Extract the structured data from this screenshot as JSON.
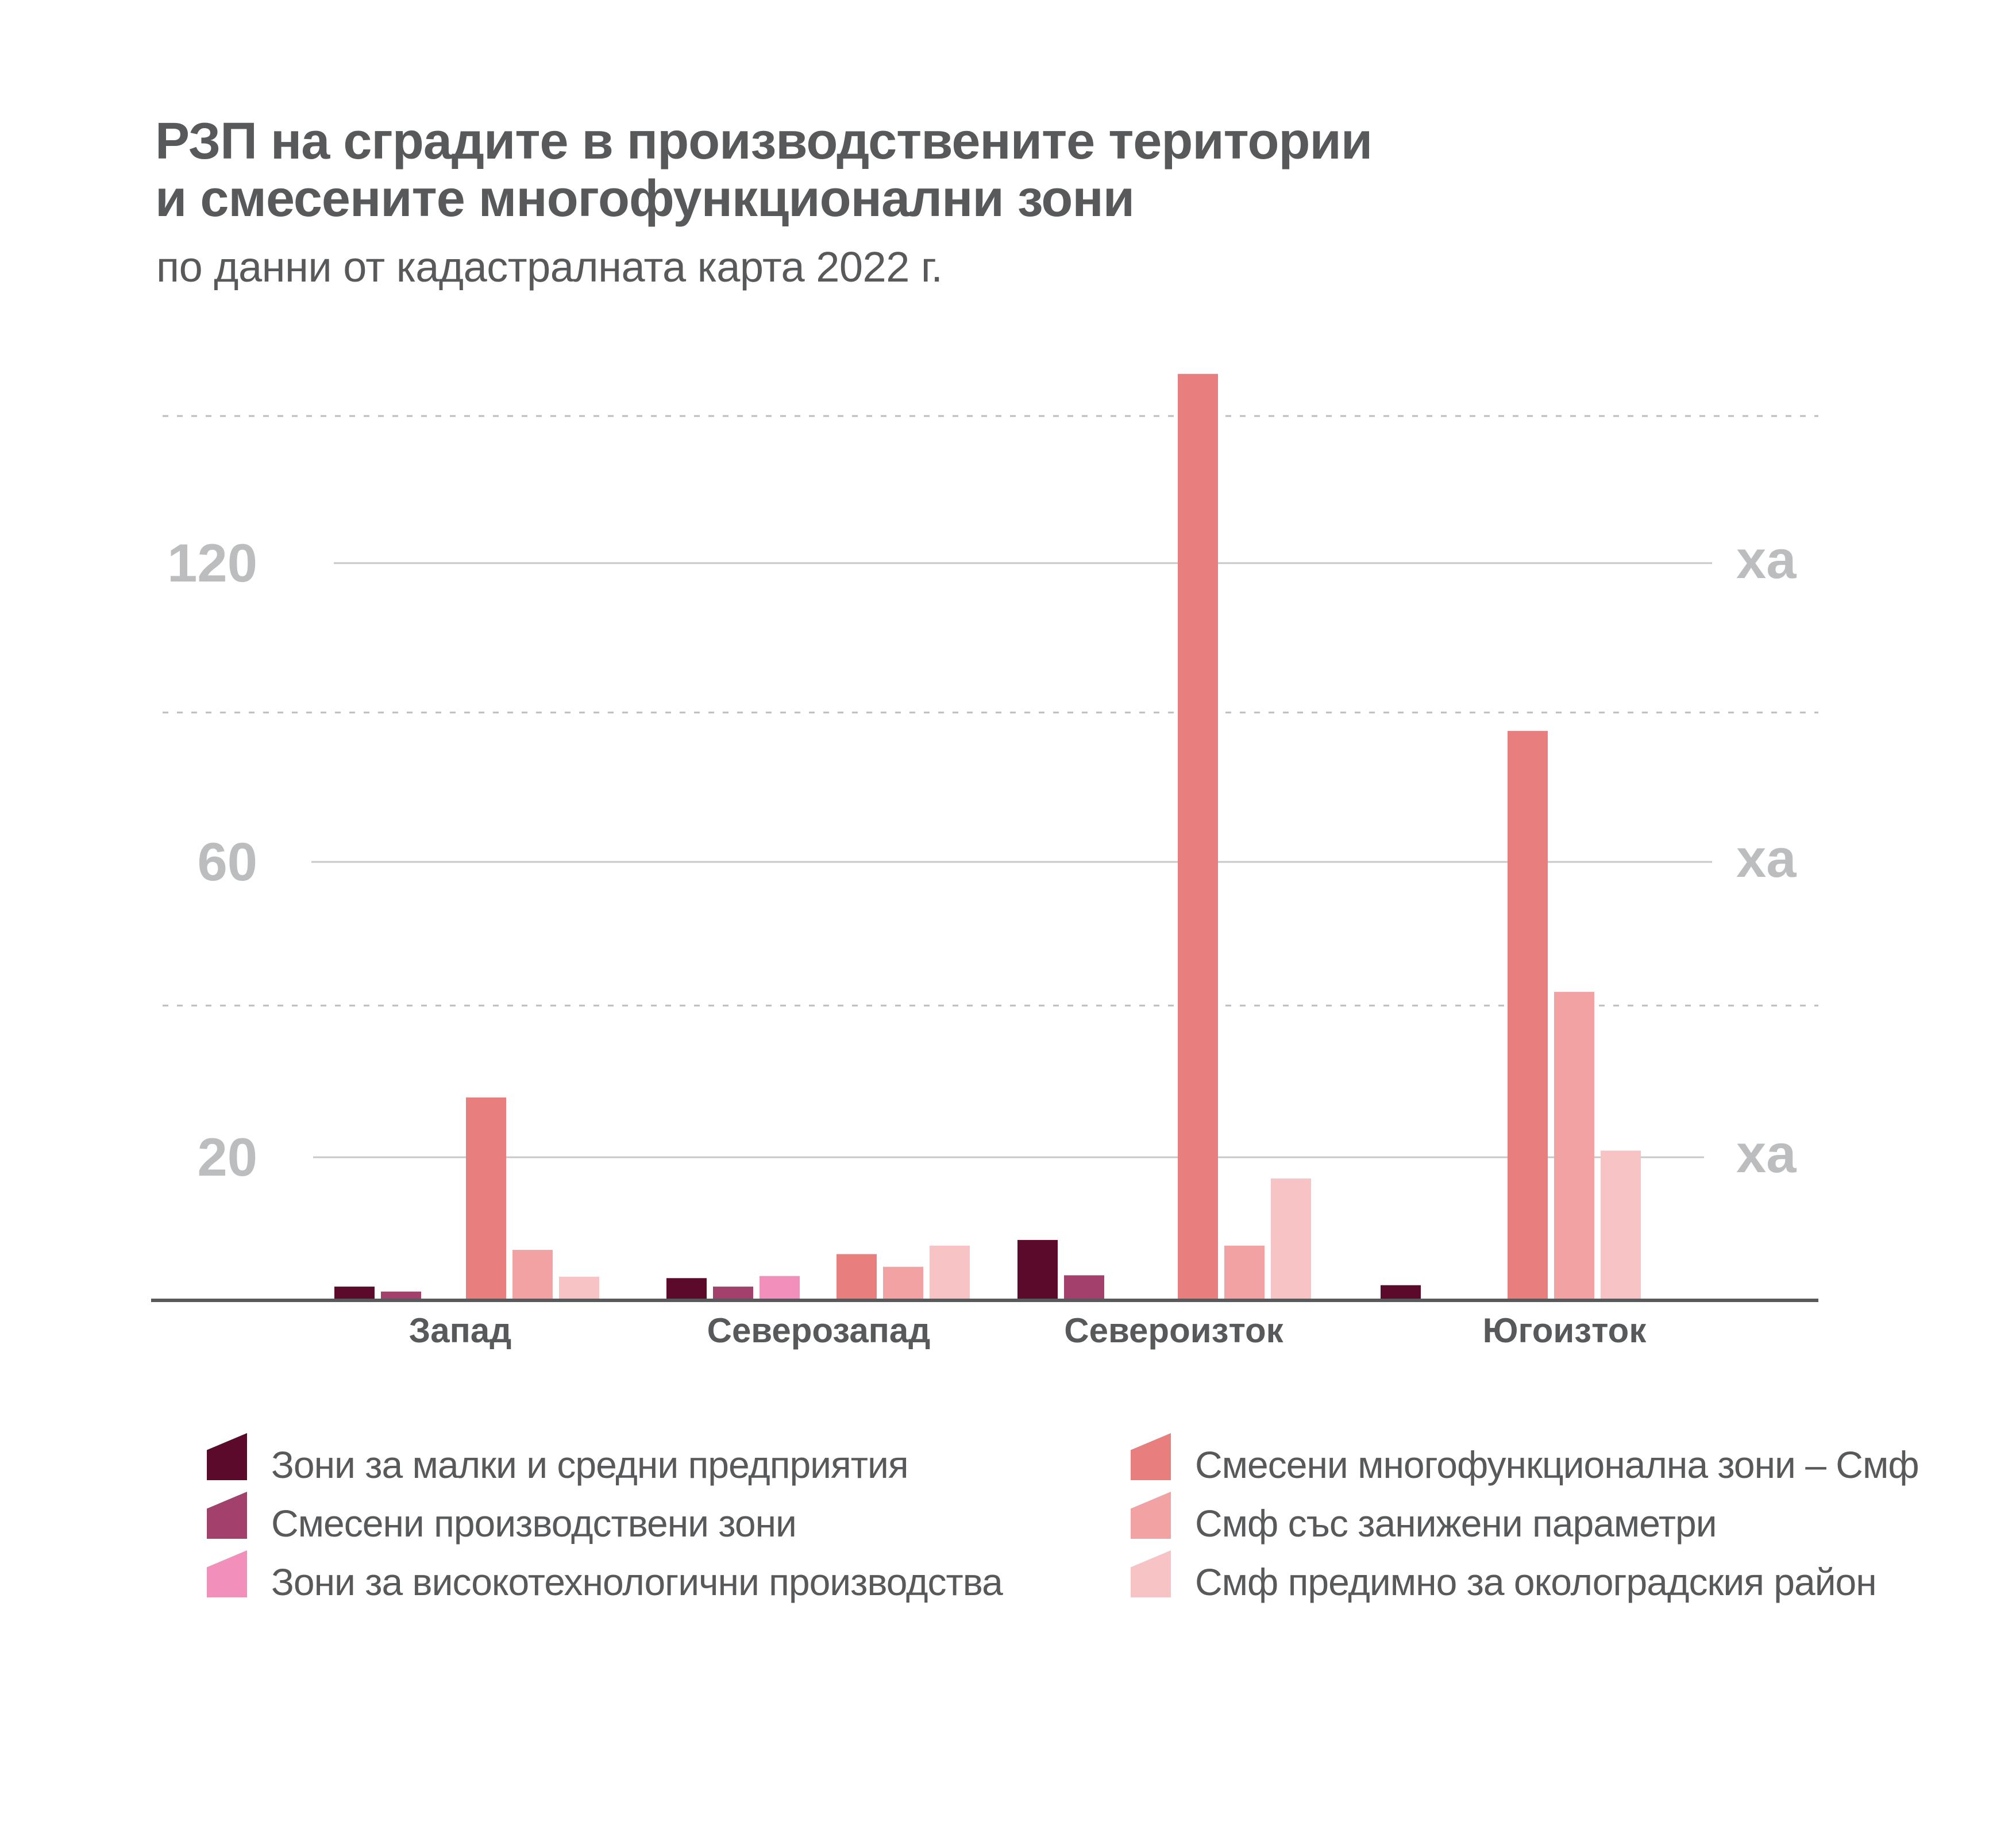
{
  "header": {
    "title_line1": "РЗП на сградите в производствените територии",
    "title_line2": "и смесените многофункционални зони",
    "subtitle": "по данни от кадастралната карта 2022 г."
  },
  "chart_data": {
    "type": "bar",
    "title": "РЗП на сградите в производствените територии и смесените многофункционални зони",
    "subtitle": "по данни от кадастралната карта 2022 г.",
    "xlabel": "",
    "ylabel": "ха",
    "categories": [
      "Запад",
      "Северозапад",
      "Североизток",
      "Югоизток"
    ],
    "yticks": [
      20,
      60,
      120
    ],
    "ytick_labels": [
      "20",
      "60",
      "120"
    ],
    "yunit_label": "ха",
    "grid": true,
    "legend_position": "bottom",
    "series": [
      {
        "name": "Зони за малки и средни предприятия",
        "color": "#5b0a2b",
        "values": [
          1.7,
          2.9,
          8.3,
          1.9
        ]
      },
      {
        "name": "Смесени производствени зони",
        "color": "#a3406c",
        "values": [
          1.0,
          1.7,
          3.3,
          0
        ]
      },
      {
        "name": "Зони за високотехнологични производства",
        "color": "#f28fba",
        "values": [
          0,
          3.2,
          0,
          0
        ]
      },
      {
        "name": "Смесени многофункционална зони – Смф",
        "color": "#e97e7e",
        "values": [
          28.1,
          6.3,
          158,
          86.3
        ]
      },
      {
        "name": "Смф със занижени параметри",
        "color": "#f2a2a3",
        "values": [
          6.9,
          4.5,
          7.5,
          42.4
        ]
      },
      {
        "name": "Смф предимно за околоградския район",
        "color": "#f8c3c4",
        "values": [
          3.1,
          7.5,
          17.0,
          20.9
        ]
      }
    ]
  },
  "colors": {
    "text": "#58595b",
    "axis_label": "#bcbdbf",
    "gridline": "#c8c8c8",
    "baseline": "#58595b"
  }
}
